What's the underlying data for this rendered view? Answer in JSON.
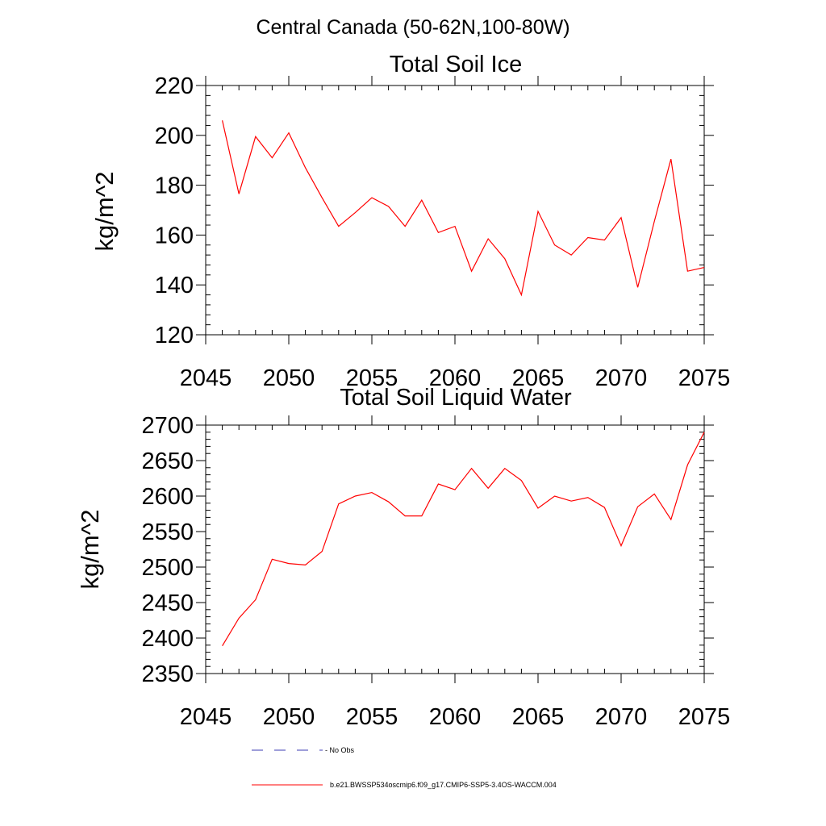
{
  "figure_title": "Central Canada (50-62N,100-80W)",
  "colors": {
    "model_line": "#ff0000",
    "obs_line": "#3c3cb4",
    "axis": "#000000"
  },
  "chart_data": [
    {
      "type": "line",
      "title": "Total Soil Ice",
      "ylabel": "kg/m^2",
      "xlabel": "",
      "xlim": [
        2045,
        2075
      ],
      "ylim": [
        120,
        220
      ],
      "xticks": [
        2045,
        2050,
        2055,
        2060,
        2065,
        2070,
        2075
      ],
      "yticks": [
        120,
        140,
        160,
        180,
        200,
        220
      ],
      "series": [
        {
          "name": "b.e21.BWSSP534oscmip6.f09_g17.CMIP6-SSP5-3.4OS-WACCM.004",
          "x": [
            2046,
            2047,
            2048,
            2049,
            2050,
            2051,
            2052,
            2053,
            2054,
            2055,
            2056,
            2057,
            2058,
            2059,
            2060,
            2061,
            2062,
            2063,
            2064,
            2065,
            2066,
            2067,
            2068,
            2069,
            2070,
            2071,
            2072,
            2073,
            2074,
            2075
          ],
          "y": [
            206,
            176.5,
            199.5,
            191,
            201,
            187,
            175,
            163.5,
            169,
            175,
            171.5,
            163.5,
            174,
            161,
            163.5,
            145.5,
            158.5,
            150.5,
            136,
            169.5,
            156,
            152,
            159,
            158,
            167,
            139,
            165.5,
            190.5,
            145.5,
            147
          ]
        }
      ]
    },
    {
      "type": "line",
      "title": "Total Soil Liquid Water",
      "ylabel": "kg/m^2",
      "xlabel": "",
      "xlim": [
        2045,
        2075
      ],
      "ylim": [
        2350,
        2700
      ],
      "xticks": [
        2045,
        2050,
        2055,
        2060,
        2065,
        2070,
        2075
      ],
      "yticks": [
        2350,
        2400,
        2450,
        2500,
        2550,
        2600,
        2650,
        2700
      ],
      "series": [
        {
          "name": "b.e21.BWSSP534oscmip6.f09_g17.CMIP6-SSP5-3.4OS-WACCM.004",
          "x": [
            2046,
            2047,
            2048,
            2049,
            2050,
            2051,
            2052,
            2053,
            2054,
            2055,
            2056,
            2057,
            2058,
            2059,
            2060,
            2061,
            2062,
            2063,
            2064,
            2065,
            2066,
            2067,
            2068,
            2069,
            2070,
            2071,
            2072,
            2073,
            2074,
            2075
          ],
          "y": [
            2389,
            2428,
            2454,
            2511,
            2505,
            2503,
            2522,
            2589,
            2600,
            2605,
            2592,
            2572,
            2572,
            2617,
            2609,
            2639,
            2611,
            2639,
            2622,
            2583,
            2600,
            2593,
            2598,
            2584,
            2530,
            2585,
            2603,
            2567,
            2644,
            2690
          ]
        }
      ]
    }
  ],
  "legend": {
    "items": [
      {
        "label": "- No Obs",
        "style": "dashed",
        "color": "#3c3cb4"
      },
      {
        "label": "b.e21.BWSSP534oscmip6.f09_g17.CMIP6-SSP5-3.4OS-WACCM.004",
        "style": "solid",
        "color": "#ff0000"
      }
    ]
  }
}
